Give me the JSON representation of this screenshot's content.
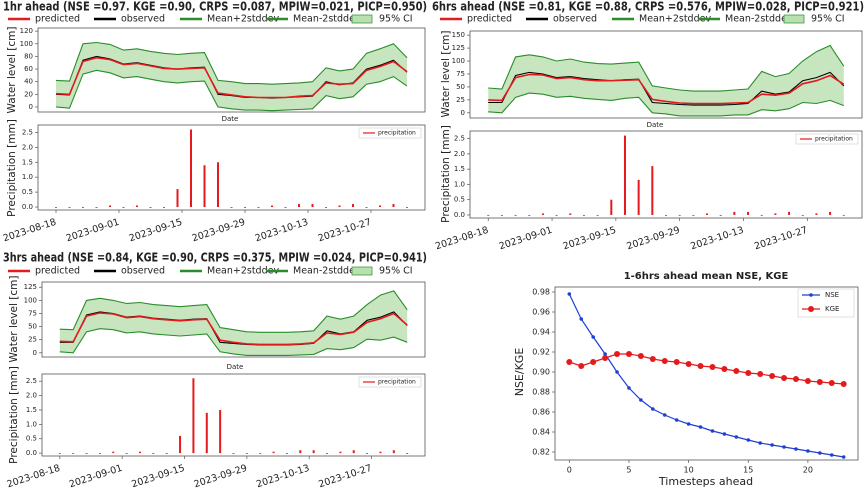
{
  "chart_data": [
    {
      "type": "line",
      "title": "1hr ahead (NSE =0.97. KGE =0.90, CRPS =0.087, MPIW=0.021, PICP=0.950)",
      "xlabel": "Date",
      "ylabel": "Water level [cm]",
      "x": [
        "2023-08-18",
        "2023-08-21",
        "2023-08-24",
        "2023-08-27",
        "2023-08-30",
        "2023-09-02",
        "2023-09-05",
        "2023-09-08",
        "2023-09-11",
        "2023-09-14",
        "2023-09-17",
        "2023-09-20",
        "2023-09-23",
        "2023-09-26",
        "2023-09-29",
        "2023-10-02",
        "2023-10-05",
        "2023-10-08",
        "2023-10-11",
        "2023-10-14",
        "2023-10-17",
        "2023-10-20",
        "2023-10-23",
        "2023-10-26",
        "2023-10-29",
        "2023-11-01",
        "2023-11-04"
      ],
      "xlim": [
        "2023-08-14",
        "2023-11-08"
      ],
      "ylim": [
        -8,
        125
      ],
      "yticks": [
        0,
        20,
        40,
        60,
        80,
        100,
        120
      ],
      "series": [
        {
          "name": "predicted",
          "color": "#e41a1c",
          "values": [
            21,
            20,
            72,
            78,
            75,
            67,
            69,
            65,
            61,
            60,
            61,
            62,
            22,
            19,
            16,
            15,
            15,
            15,
            17,
            18,
            38,
            36,
            37,
            58,
            64,
            72,
            56
          ]
        },
        {
          "name": "observed",
          "color": "#000000",
          "values": [
            20,
            19,
            74,
            80,
            76,
            68,
            70,
            66,
            62,
            60,
            62,
            63,
            20,
            18,
            15,
            15,
            14,
            15,
            16,
            17,
            40,
            35,
            38,
            60,
            66,
            74,
            55
          ]
        },
        {
          "name": "Mean+2stddev",
          "color": "#2a8c2a",
          "values": [
            42,
            41,
            100,
            102,
            99,
            90,
            92,
            88,
            85,
            83,
            85,
            86,
            42,
            40,
            37,
            37,
            36,
            37,
            38,
            40,
            62,
            57,
            60,
            85,
            92,
            100,
            78
          ]
        },
        {
          "name": "Mean-2stddev",
          "color": "#2a8c2a",
          "values": [
            0,
            -2,
            52,
            58,
            54,
            46,
            48,
            44,
            40,
            38,
            40,
            41,
            0,
            -3,
            -5,
            -5,
            -6,
            -5,
            -4,
            -3,
            18,
            13,
            16,
            36,
            40,
            48,
            33
          ]
        }
      ],
      "band": {
        "name": "95% CI",
        "color": "#b9e0b0"
      }
    },
    {
      "type": "bar",
      "ylabel": "Precipitation [mm]",
      "x": [
        "2023-08-18",
        "2023-08-21",
        "2023-08-24",
        "2023-08-27",
        "2023-08-30",
        "2023-09-02",
        "2023-09-05",
        "2023-09-08",
        "2023-09-11",
        "2023-09-14",
        "2023-09-17",
        "2023-09-20",
        "2023-09-23",
        "2023-09-26",
        "2023-09-29",
        "2023-10-02",
        "2023-10-05",
        "2023-10-08",
        "2023-10-11",
        "2023-10-14",
        "2023-10-17",
        "2023-10-20",
        "2023-10-23",
        "2023-10-26",
        "2023-10-29",
        "2023-11-01",
        "2023-11-04"
      ],
      "xlim": [
        "2023-08-14",
        "2023-11-08"
      ],
      "xticks": [
        "2023-08-18",
        "2023-09-01",
        "2023-09-15",
        "2023-09-29",
        "2023-10-13",
        "2023-10-27"
      ],
      "ylim": [
        -0.1,
        2.75
      ],
      "yticks": [
        {
          "value": 0,
          "label": "0.0"
        },
        0.5,
        {
          "value": 1,
          "label": "1.0"
        },
        1.5,
        {
          "value": 2,
          "label": "2.0"
        },
        2.5
      ],
      "series": [
        {
          "name": "precipitation",
          "color": "#e41a1c",
          "values": [
            0,
            0,
            0,
            0,
            0.05,
            0,
            0.05,
            0,
            0,
            0.6,
            2.6,
            1.4,
            1.5,
            0,
            0,
            0,
            0.05,
            0,
            0.1,
            0.1,
            0,
            0.05,
            0.1,
            0,
            0.05,
            0.1,
            0
          ]
        }
      ]
    },
    {
      "type": "line",
      "title": "6hrs ahead (NSE =0.81, KGE =0.88, CRPS =0.576, MPIW=0.028, PICP=0.921)",
      "xlabel": "Date",
      "ylabel": "Water level [cm]",
      "x": [
        "2023-08-18",
        "2023-08-21",
        "2023-08-24",
        "2023-08-27",
        "2023-08-30",
        "2023-09-02",
        "2023-09-05",
        "2023-09-08",
        "2023-09-11",
        "2023-09-14",
        "2023-09-17",
        "2023-09-20",
        "2023-09-23",
        "2023-09-26",
        "2023-09-29",
        "2023-10-02",
        "2023-10-05",
        "2023-10-08",
        "2023-10-11",
        "2023-10-14",
        "2023-10-17",
        "2023-10-20",
        "2023-10-23",
        "2023-10-26",
        "2023-10-29",
        "2023-11-01",
        "2023-11-04"
      ],
      "xlim": [
        "2023-08-14",
        "2023-11-08"
      ],
      "ylim": [
        -10,
        158
      ],
      "yticks": [
        0,
        25,
        50,
        75,
        100,
        125,
        150
      ],
      "series": [
        {
          "name": "predicted",
          "color": "#e41a1c",
          "values": [
            25,
            24,
            68,
            74,
            73,
            66,
            68,
            64,
            62,
            62,
            63,
            64,
            26,
            22,
            19,
            18,
            18,
            18,
            19,
            20,
            36,
            34,
            38,
            56,
            62,
            72,
            55
          ]
        },
        {
          "name": "observed",
          "color": "#000000",
          "values": [
            20,
            20,
            72,
            78,
            75,
            68,
            70,
            66,
            64,
            62,
            64,
            65,
            20,
            18,
            16,
            15,
            15,
            15,
            16,
            18,
            42,
            36,
            40,
            62,
            68,
            78,
            52
          ]
        },
        {
          "name": "Mean+2stddev",
          "color": "#2a8c2a",
          "values": [
            48,
            46,
            108,
            112,
            108,
            100,
            104,
            98,
            95,
            94,
            96,
            98,
            52,
            48,
            44,
            42,
            42,
            42,
            44,
            46,
            80,
            70,
            76,
            100,
            118,
            130,
            90
          ]
        },
        {
          "name": "Mean-2stddev",
          "color": "#2a8c2a",
          "values": [
            2,
            0,
            30,
            38,
            36,
            30,
            32,
            28,
            26,
            24,
            28,
            30,
            0,
            -2,
            -6,
            -6,
            -6,
            -6,
            -4,
            -4,
            6,
            4,
            8,
            20,
            18,
            24,
            14
          ]
        }
      ],
      "band": {
        "name": "95% CI",
        "color": "#b9e0b0"
      }
    },
    {
      "type": "bar",
      "ylabel": "Precipitation [mm]",
      "x": [
        "2023-08-18",
        "2023-08-21",
        "2023-08-24",
        "2023-08-27",
        "2023-08-30",
        "2023-09-02",
        "2023-09-05",
        "2023-09-08",
        "2023-09-11",
        "2023-09-14",
        "2023-09-17",
        "2023-09-20",
        "2023-09-23",
        "2023-09-26",
        "2023-09-29",
        "2023-10-02",
        "2023-10-05",
        "2023-10-08",
        "2023-10-11",
        "2023-10-14",
        "2023-10-17",
        "2023-10-20",
        "2023-10-23",
        "2023-10-26",
        "2023-10-29",
        "2023-11-01",
        "2023-11-04"
      ],
      "xlim": [
        "2023-08-14",
        "2023-11-08"
      ],
      "xticks": [
        "2023-08-18",
        "2023-09-01",
        "2023-09-15",
        "2023-09-29",
        "2023-10-13",
        "2023-10-27"
      ],
      "ylim": [
        -0.1,
        2.75
      ],
      "yticks": [
        {
          "value": 0,
          "label": "0.0"
        },
        0.5,
        {
          "value": 1,
          "label": "1.0"
        },
        1.5,
        {
          "value": 2,
          "label": "2.0"
        },
        2.5
      ],
      "series": [
        {
          "name": "precipitation",
          "color": "#e41a1c",
          "values": [
            0,
            0,
            0,
            0,
            0.05,
            0,
            0.05,
            0,
            0,
            0.5,
            2.6,
            1.15,
            1.6,
            0,
            0,
            0,
            0.05,
            0,
            0.1,
            0.1,
            0,
            0.05,
            0.1,
            0,
            0.05,
            0.1,
            0
          ]
        }
      ]
    },
    {
      "type": "line",
      "title": "3hrs ahead (NSE =0.84, KGE =0.90, CRPS =0.375, MPIW =0.024, PICP=0.941)",
      "xlabel": "Date",
      "ylabel": "Water level [cm]",
      "x": [
        "2023-08-18",
        "2023-08-21",
        "2023-08-24",
        "2023-08-27",
        "2023-08-30",
        "2023-09-02",
        "2023-09-05",
        "2023-09-08",
        "2023-09-11",
        "2023-09-14",
        "2023-09-17",
        "2023-09-20",
        "2023-09-23",
        "2023-09-26",
        "2023-09-29",
        "2023-10-02",
        "2023-10-05",
        "2023-10-08",
        "2023-10-11",
        "2023-10-14",
        "2023-10-17",
        "2023-10-20",
        "2023-10-23",
        "2023-10-26",
        "2023-10-29",
        "2023-11-01",
        "2023-11-04"
      ],
      "xlim": [
        "2023-08-14",
        "2023-11-08"
      ],
      "ylim": [
        -8,
        135
      ],
      "yticks": [
        0,
        25,
        50,
        75,
        100,
        125
      ],
      "series": [
        {
          "name": "predicted",
          "color": "#e41a1c",
          "values": [
            22,
            21,
            70,
            76,
            74,
            67,
            69,
            65,
            63,
            61,
            63,
            64,
            24,
            20,
            17,
            16,
            16,
            16,
            17,
            19,
            38,
            35,
            39,
            58,
            65,
            75,
            53
          ]
        },
        {
          "name": "observed",
          "color": "#000000",
          "values": [
            20,
            20,
            72,
            78,
            75,
            68,
            70,
            66,
            64,
            62,
            64,
            65,
            20,
            18,
            16,
            15,
            15,
            15,
            16,
            18,
            42,
            36,
            40,
            62,
            68,
            78,
            52
          ]
        },
        {
          "name": "Mean+2stddev",
          "color": "#2a8c2a",
          "values": [
            45,
            44,
            100,
            104,
            100,
            94,
            96,
            92,
            90,
            88,
            90,
            92,
            48,
            44,
            40,
            39,
            39,
            39,
            40,
            42,
            70,
            64,
            70,
            92,
            110,
            118,
            82
          ]
        },
        {
          "name": "Mean-2stddev",
          "color": "#2a8c2a",
          "values": [
            2,
            0,
            40,
            46,
            44,
            38,
            40,
            36,
            34,
            32,
            34,
            36,
            2,
            -2,
            -5,
            -5,
            -5,
            -5,
            -4,
            -3,
            8,
            6,
            10,
            26,
            24,
            30,
            20
          ]
        }
      ],
      "band": {
        "name": "95% CI",
        "color": "#b9e0b0"
      }
    },
    {
      "type": "bar",
      "ylabel": "Precipitation [mm]",
      "x": [
        "2023-08-18",
        "2023-08-21",
        "2023-08-24",
        "2023-08-27",
        "2023-08-30",
        "2023-09-02",
        "2023-09-05",
        "2023-09-08",
        "2023-09-11",
        "2023-09-14",
        "2023-09-17",
        "2023-09-20",
        "2023-09-23",
        "2023-09-26",
        "2023-09-29",
        "2023-10-02",
        "2023-10-05",
        "2023-10-08",
        "2023-10-11",
        "2023-10-14",
        "2023-10-17",
        "2023-10-20",
        "2023-10-23",
        "2023-10-26",
        "2023-10-29",
        "2023-11-01",
        "2023-11-04"
      ],
      "xlim": [
        "2023-08-14",
        "2023-11-08"
      ],
      "xticks": [
        "2023-08-18",
        "2023-09-01",
        "2023-09-15",
        "2023-09-29",
        "2023-10-13",
        "2023-10-27"
      ],
      "ylim": [
        -0.1,
        2.75
      ],
      "yticks": [
        {
          "value": 0,
          "label": "0.0"
        },
        0.5,
        {
          "value": 1,
          "label": "1.0"
        },
        1.5,
        {
          "value": 2,
          "label": "2.0"
        },
        2.5
      ],
      "series": [
        {
          "name": "precipitation",
          "color": "#e41a1c",
          "values": [
            0,
            0,
            0,
            0,
            0.05,
            0,
            0.05,
            0,
            0,
            0.6,
            2.6,
            1.4,
            1.5,
            0,
            0,
            0,
            0.05,
            0,
            0.1,
            0.1,
            0,
            0.05,
            0.1,
            0,
            0.05,
            0.1,
            0
          ]
        }
      ]
    },
    {
      "type": "scatterline",
      "title": "1-6hrs ahead mean NSE, KGE",
      "xlabel": "Timesteps ahead",
      "ylabel": "NSE/KGE",
      "x": [
        0,
        1,
        2,
        3,
        4,
        5,
        6,
        7,
        8,
        9,
        10,
        11,
        12,
        13,
        14,
        15,
        16,
        17,
        18,
        19,
        20,
        21,
        22,
        23
      ],
      "xlim": [
        -1.2,
        24.2
      ],
      "xticks": [
        0,
        5,
        10,
        15,
        20
      ],
      "ylim": [
        0.812,
        0.985
      ],
      "yticks": [
        0.82,
        0.84,
        0.86,
        0.88,
        {
          "value": 0.9,
          "label": "0.90"
        },
        0.92,
        0.94,
        0.96,
        0.98
      ],
      "series": [
        {
          "name": "NSE",
          "color": "#1f3fd6",
          "values": [
            0.978,
            0.953,
            0.935,
            0.918,
            0.9,
            0.884,
            0.872,
            0.863,
            0.857,
            0.852,
            0.848,
            0.845,
            0.841,
            0.838,
            0.835,
            0.832,
            0.829,
            0.827,
            0.825,
            0.823,
            0.821,
            0.819,
            0.817,
            0.815
          ]
        },
        {
          "name": "KGE",
          "color": "#e41a1c",
          "values": [
            0.91,
            0.906,
            0.91,
            0.914,
            0.918,
            0.918,
            0.916,
            0.913,
            0.911,
            0.91,
            0.908,
            0.906,
            0.905,
            0.903,
            0.901,
            0.899,
            0.898,
            0.896,
            0.894,
            0.893,
            0.891,
            0.89,
            0.889,
            0.888
          ]
        }
      ],
      "legend": "upper right"
    }
  ]
}
